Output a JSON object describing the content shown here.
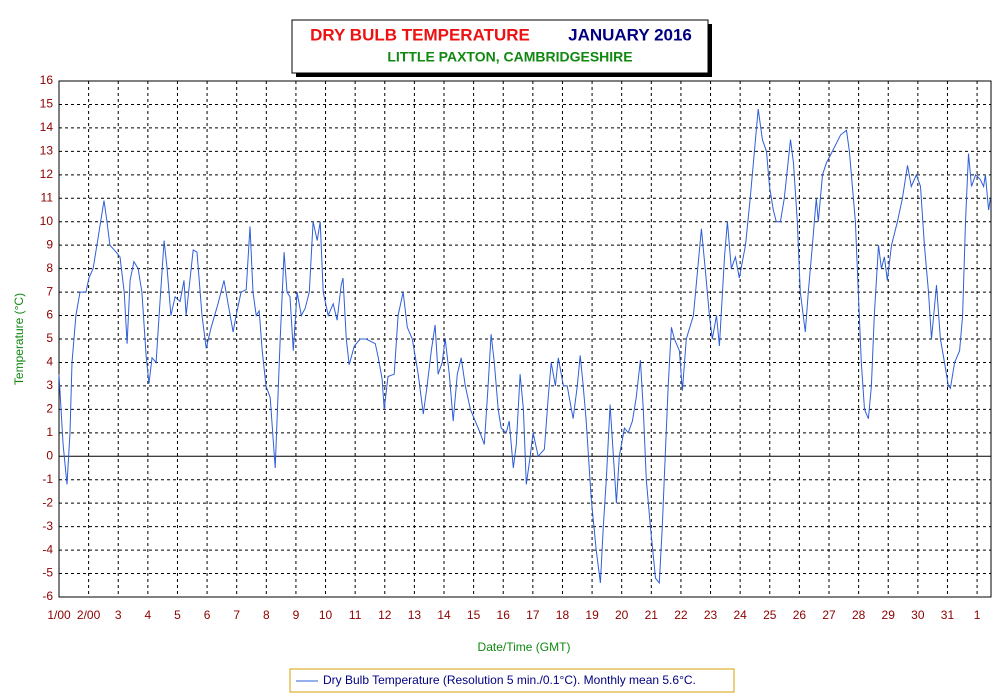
{
  "chart_data": {
    "type": "line",
    "title": "DRY BULB TEMPERATURE",
    "title_month": "JANUARY 2016",
    "subtitle": "LITTLE PAXTON, CAMBRIDGESHIRE",
    "ylabel": "Temperature (°C)",
    "xlabel": "Date/Time (GMT)",
    "xlim": [
      0,
      31.47
    ],
    "ylim": [
      -6,
      16
    ],
    "xticks": [
      {
        "value": 0,
        "label": "1/00"
      },
      {
        "value": 1,
        "label": "2/00"
      },
      {
        "value": 2,
        "label": "3"
      },
      {
        "value": 3,
        "label": "4"
      },
      {
        "value": 4,
        "label": "5"
      },
      {
        "value": 5,
        "label": "6"
      },
      {
        "value": 6,
        "label": "7"
      },
      {
        "value": 7,
        "label": "8"
      },
      {
        "value": 8,
        "label": "9"
      },
      {
        "value": 9,
        "label": "10"
      },
      {
        "value": 10,
        "label": "11"
      },
      {
        "value": 11,
        "label": "12"
      },
      {
        "value": 12,
        "label": "13"
      },
      {
        "value": 13,
        "label": "14"
      },
      {
        "value": 14,
        "label": "15"
      },
      {
        "value": 15,
        "label": "16"
      },
      {
        "value": 16,
        "label": "17"
      },
      {
        "value": 17,
        "label": "18"
      },
      {
        "value": 18,
        "label": "19"
      },
      {
        "value": 19,
        "label": "20"
      },
      {
        "value": 20,
        "label": "21"
      },
      {
        "value": 21,
        "label": "22"
      },
      {
        "value": 22,
        "label": "23"
      },
      {
        "value": 23,
        "label": "24"
      },
      {
        "value": 24,
        "label": "25"
      },
      {
        "value": 25,
        "label": "26"
      },
      {
        "value": 26,
        "label": "27"
      },
      {
        "value": 27,
        "label": "28"
      },
      {
        "value": 28,
        "label": "29"
      },
      {
        "value": 29,
        "label": "30"
      },
      {
        "value": 30,
        "label": "31"
      },
      {
        "value": 31,
        "label": "1"
      }
    ],
    "yticks": [
      -6,
      -5,
      -4,
      -3,
      -2,
      -1,
      0,
      1,
      2,
      3,
      4,
      5,
      6,
      7,
      8,
      9,
      10,
      11,
      12,
      13,
      14,
      15,
      16
    ],
    "grid": true,
    "x": [
      0,
      0.14,
      0.27,
      0.37,
      0.44,
      0.57,
      0.71,
      0.91,
      1.01,
      1.15,
      1.28,
      1.52,
      1.62,
      1.72,
      1.93,
      2.06,
      2.2,
      2.3,
      2.4,
      2.53,
      2.67,
      2.8,
      2.94,
      3.04,
      3.14,
      3.28,
      3.38,
      3.55,
      3.65,
      3.78,
      3.92,
      4.09,
      4.22,
      4.29,
      4.53,
      4.66,
      4.83,
      4.97,
      5.14,
      5.37,
      5.57,
      5.71,
      5.88,
      5.98,
      6.15,
      6.32,
      6.45,
      6.55,
      6.66,
      6.76,
      6.86,
      6.99,
      7.13,
      7.3,
      7.36,
      7.47,
      7.6,
      7.7,
      7.8,
      7.91,
      8.04,
      8.18,
      8.31,
      8.45,
      8.58,
      8.72,
      8.82,
      8.92,
      9.09,
      9.26,
      9.39,
      9.53,
      9.59,
      9.7,
      9.8,
      9.97,
      10.17,
      10.37,
      10.68,
      10.78,
      10.91,
      10.98,
      11.11,
      11.32,
      11.45,
      11.62,
      11.76,
      11.93,
      12.13,
      12.3,
      12.43,
      12.57,
      12.7,
      12.8,
      12.94,
      13.04,
      13.18,
      13.31,
      13.45,
      13.58,
      13.72,
      13.89,
      14.22,
      14.36,
      14.49,
      14.59,
      14.7,
      14.83,
      14.93,
      15.1,
      15.2,
      15.34,
      15.44,
      15.57,
      15.68,
      15.78,
      15.91,
      16.01,
      16.18,
      16.39,
      16.52,
      16.62,
      16.76,
      16.86,
      17.03,
      17.16,
      17.36,
      17.5,
      17.6,
      17.7,
      17.8,
      17.97,
      18.14,
      18.28,
      18.38,
      18.48,
      18.61,
      18.72,
      18.82,
      18.92,
      19.09,
      19.22,
      19.36,
      19.49,
      19.63,
      19.73,
      19.83,
      19.97,
      20.14,
      20.27,
      20.37,
      20.47,
      20.57,
      20.68,
      20.78,
      20.95,
      21.05,
      21.18,
      21.42,
      21.69,
      21.82,
      21.96,
      22.06,
      22.2,
      22.3,
      22.47,
      22.57,
      22.7,
      22.84,
      22.97,
      23.18,
      23.34,
      23.48,
      23.61,
      23.75,
      23.89,
      23.99,
      24.12,
      24.22,
      24.36,
      24.49,
      24.7,
      24.8,
      24.93,
      25.03,
      25.2,
      25.3,
      25.44,
      25.57,
      25.64,
      25.78,
      25.91,
      26.11,
      26.39,
      26.59,
      26.69,
      26.89,
      26.99,
      27.09,
      27.2,
      27.33,
      27.43,
      27.53,
      27.67,
      27.77,
      27.87,
      27.97,
      28.11,
      28.31,
      28.48,
      28.65,
      28.78,
      28.95,
      29.09,
      29.22,
      29.36,
      29.46,
      29.63,
      29.76,
      29.9,
      30.03,
      30.1,
      30.24,
      30.41,
      30.51,
      30.61,
      30.71,
      30.81,
      30.95,
      31.11,
      31.22,
      31.28,
      31.39,
      31.45
    ],
    "series": [
      {
        "name": "Dry Bulb Temperature (Resolution 5 min./0.1°C). Monthly mean 5.6°C.",
        "color": "#2f5fd8",
        "values": [
          3.5,
          0.5,
          -1.2,
          1,
          4,
          6,
          7,
          7,
          7.6,
          8,
          9,
          10.9,
          10,
          9,
          8.7,
          8.5,
          7,
          4.8,
          7.5,
          8.3,
          8,
          7,
          4.3,
          3.1,
          4.2,
          4,
          6,
          9.2,
          8,
          6,
          6.8,
          6.6,
          7.5,
          6,
          8.8,
          8.7,
          6,
          4.6,
          5.5,
          6.5,
          7.5,
          6.5,
          5.3,
          6,
          7,
          7.1,
          9.8,
          7,
          6,
          6.2,
          4.5,
          3,
          2.5,
          -0.5,
          1.5,
          5,
          8.7,
          7,
          6.8,
          4.5,
          7,
          6,
          6.3,
          7,
          10,
          9.2,
          10,
          7,
          6,
          6.5,
          5.8,
          7.3,
          7.6,
          5,
          3.9,
          4.7,
          5,
          5,
          4.8,
          4.2,
          3.3,
          2,
          3.4,
          3.5,
          6,
          7,
          5.5,
          5,
          3.5,
          1.8,
          3,
          4.5,
          5.6,
          3.5,
          4,
          5,
          3.5,
          1.5,
          3.5,
          4.2,
          3,
          2,
          1,
          0.5,
          3,
          5.2,
          4,
          2,
          1.2,
          1,
          1.5,
          -0.5,
          0.5,
          3.5,
          2,
          -1.2,
          0,
          1,
          0,
          0.3,
          2.5,
          4,
          3,
          4.2,
          3,
          3,
          1.6,
          3,
          4.3,
          3,
          1.5,
          -1.8,
          -4,
          -5.4,
          -3,
          -1,
          2.2,
          0,
          -2,
          0,
          1.2,
          1,
          1.5,
          2.5,
          4.1,
          2,
          -1,
          -3,
          -5.2,
          -5.4,
          -3,
          0,
          3,
          5.5,
          5,
          4.5,
          2.8,
          5,
          6,
          9.7,
          8,
          6,
          5,
          6,
          4.7,
          8.5,
          10,
          8,
          8.5,
          7.6,
          9,
          11,
          13,
          14.8,
          13.5,
          13,
          11.5,
          10.5,
          10,
          10,
          11,
          13.5,
          12.5,
          10,
          7,
          5.3,
          7,
          9,
          11,
          10,
          12,
          12.5,
          13,
          13.7,
          13.9,
          13,
          10,
          7,
          4,
          2,
          1.6,
          3,
          6,
          9,
          8,
          8.5,
          7.5,
          9,
          10,
          11,
          12.4,
          11.5,
          12,
          11.5,
          9,
          7,
          5,
          7.3,
          5,
          4,
          3,
          2.9,
          4,
          4.5,
          6,
          10,
          12.9,
          11.5,
          12,
          11.8,
          11.5,
          12,
          10.5,
          11
        ]
      }
    ]
  }
}
